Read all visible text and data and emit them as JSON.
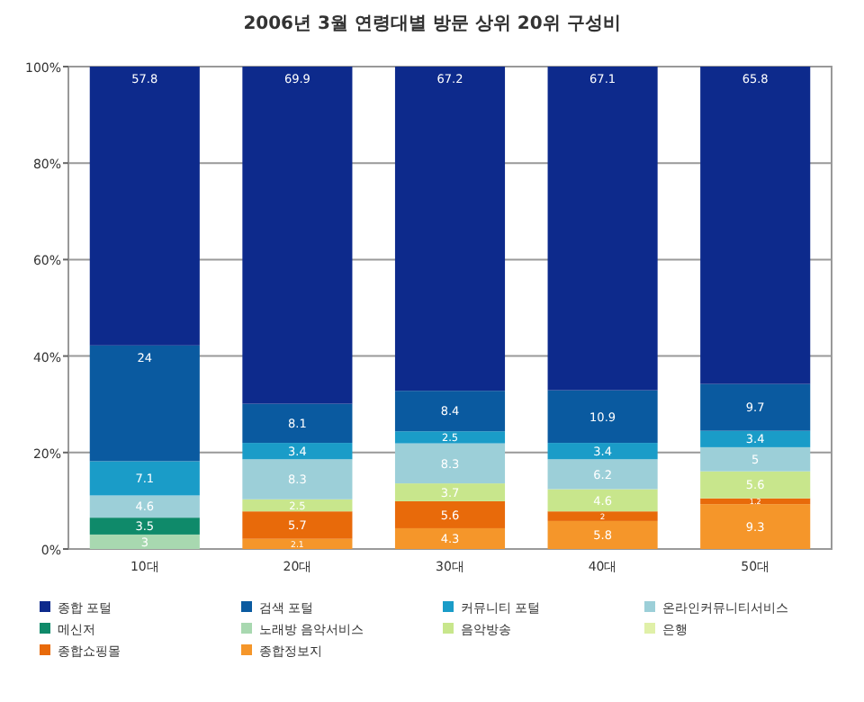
{
  "chart_data": {
    "type": "bar",
    "stacked": true,
    "title": "2006년 3월 연령대별 방문 상위 20위 구성비",
    "categories": [
      "10대",
      "20대",
      "30대",
      "40대",
      "50대"
    ],
    "series": [
      {
        "name": "종합정보지",
        "color": "#f5962a",
        "values": [
          null,
          2.1,
          4.3,
          5.8,
          9.3
        ]
      },
      {
        "name": "종합쇼핑몰",
        "color": "#e86a0a",
        "values": [
          null,
          5.7,
          5.6,
          2.0,
          1.2
        ]
      },
      {
        "name": "은행",
        "color": "#e0f0a8",
        "values": [
          null,
          null,
          null,
          null,
          null
        ]
      },
      {
        "name": "음악방송",
        "color": "#c8e68c",
        "values": [
          null,
          2.5,
          3.7,
          4.6,
          5.6
        ]
      },
      {
        "name": "노래방 음악서비스",
        "color": "#a8d8b0",
        "values": [
          3.0,
          null,
          null,
          null,
          null
        ]
      },
      {
        "name": "메신저",
        "color": "#0f8a6a",
        "values": [
          3.5,
          null,
          null,
          null,
          null
        ]
      },
      {
        "name": "온라인커뮤니티서비스",
        "color": "#9ccfd8",
        "values": [
          4.6,
          8.3,
          8.3,
          6.2,
          5.0
        ]
      },
      {
        "name": "커뮤니티 포털",
        "color": "#1a9cc8",
        "values": [
          7.1,
          3.4,
          2.5,
          3.4,
          3.4
        ]
      },
      {
        "name": "검색 포털",
        "color": "#0a5aa0",
        "values": [
          24.0,
          8.1,
          8.4,
          10.9,
          9.7
        ]
      },
      {
        "name": "종합 포털",
        "color": "#0d2a8c",
        "values": [
          57.8,
          69.9,
          67.2,
          67.1,
          65.8
        ]
      }
    ],
    "ylim": [
      0,
      100
    ],
    "yticks": [
      {
        "value": 0,
        "label": "0%"
      },
      {
        "value": 20,
        "label": "20%"
      },
      {
        "value": 40,
        "label": "40%"
      },
      {
        "value": 60,
        "label": "60%"
      },
      {
        "value": 80,
        "label": "80%"
      },
      {
        "value": 100,
        "label": "100%"
      }
    ],
    "grid": "y",
    "legend": "bottom",
    "data_labels": true
  }
}
